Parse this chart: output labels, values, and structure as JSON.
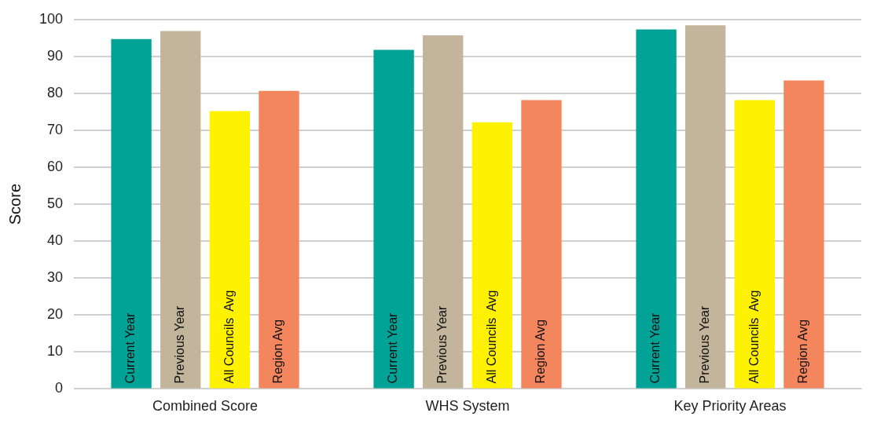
{
  "chart_data": {
    "type": "bar",
    "ylabel": "Score",
    "categories": [
      "Combined Score",
      "WHS System",
      "Key Priority Areas"
    ],
    "series": [
      {
        "name": "Current Year",
        "color": "#00a396",
        "values": [
          94.7,
          91.8,
          97.3
        ]
      },
      {
        "name": "Previous Year",
        "color": "#c2b59b",
        "values": [
          96.9,
          95.7,
          98.4
        ]
      },
      {
        "name": "All Councils  Avg",
        "color": "#fff200",
        "values": [
          75.2,
          72.2,
          78.2
        ]
      },
      {
        "name": "Region Avg",
        "color": "#f4865e",
        "values": [
          80.7,
          78.2,
          83.5
        ]
      }
    ],
    "ylim": [
      0,
      100
    ],
    "yticks": [
      0,
      10,
      20,
      30,
      40,
      50,
      60,
      70,
      80,
      90,
      100
    ],
    "grid": "y",
    "legend": false
  }
}
